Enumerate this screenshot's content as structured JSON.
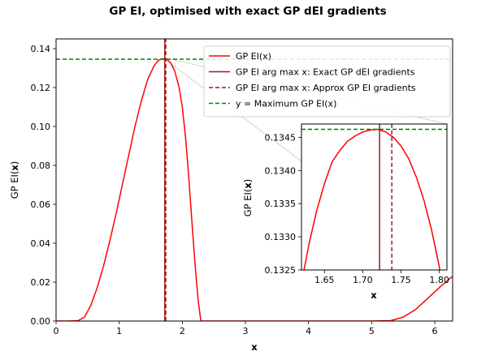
{
  "chart_data": [
    {
      "type": "line",
      "title": "GP EI, optimised with exact GP dEI gradients",
      "xlabel": "x",
      "ylabel": "GP EI(x)",
      "xlim": [
        0,
        6.283
      ],
      "ylim": [
        0,
        0.145
      ],
      "xticks": [
        0,
        1,
        2,
        3,
        4,
        5,
        6
      ],
      "yticks": [
        0.0,
        0.02,
        0.04,
        0.06,
        0.08,
        0.1,
        0.12,
        0.14
      ],
      "xtick_labels": [
        "0",
        "1",
        "2",
        "3",
        "4",
        "5",
        "6"
      ],
      "ytick_labels": [
        "0.00",
        "0.02",
        "0.04",
        "0.06",
        "0.08",
        "0.10",
        "0.12",
        "0.14"
      ],
      "grid": false,
      "legend_position": "top-right",
      "series": [
        {
          "name": "GP EI(x)",
          "style": "solid",
          "color": "#ff0000",
          "x": [
            0,
            0.2,
            0.35,
            0.45,
            0.55,
            0.65,
            0.75,
            0.85,
            0.95,
            1.05,
            1.15,
            1.25,
            1.35,
            1.45,
            1.55,
            1.62,
            1.68,
            1.72,
            1.76,
            1.82,
            1.88,
            1.95,
            2.0,
            2.05,
            2.1,
            2.15,
            2.2,
            2.25,
            2.29,
            2.3,
            3.0,
            4.0,
            5.0,
            5.3,
            5.5,
            5.7,
            5.9,
            6.1,
            6.283
          ],
          "y": [
            0,
            0,
            0.0002,
            0.002,
            0.008,
            0.017,
            0.028,
            0.041,
            0.055,
            0.07,
            0.085,
            0.1,
            0.113,
            0.124,
            0.131,
            0.134,
            0.1348,
            0.1346,
            0.1343,
            0.1325,
            0.1285,
            0.12,
            0.11,
            0.095,
            0.075,
            0.052,
            0.03,
            0.011,
            0.001,
            0,
            0,
            0,
            0,
            0.0002,
            0.002,
            0.006,
            0.012,
            0.018,
            0.023
          ]
        },
        {
          "name": "GP EI arg max x: Exact GP dEI gradients",
          "style": "solid",
          "color": "#a01818",
          "x": [
            1.722,
            1.722
          ],
          "y": [
            0,
            0.145
          ]
        },
        {
          "name": "GP EI arg max x: Approx GP EI gradients",
          "style": "dashed",
          "color": "#a01818",
          "x": [
            1.738,
            1.738
          ],
          "y": [
            0,
            0.145
          ]
        },
        {
          "name": "y = Maximum GP EI(x)",
          "style": "dashed",
          "color": "#008000",
          "x": [
            0,
            6.283
          ],
          "y": [
            0.1346,
            0.1346
          ]
        }
      ]
    },
    {
      "type": "line",
      "title": "",
      "xlabel": "x",
      "ylabel": "GP EI(x)",
      "xlim": [
        1.62,
        1.81
      ],
      "ylim": [
        0.1325,
        0.1347
      ],
      "xticks": [
        1.65,
        1.7,
        1.75,
        1.8
      ],
      "yticks": [
        0.1325,
        0.133,
        0.1335,
        0.134,
        0.1345
      ],
      "xtick_labels": [
        "1.65",
        "1.70",
        "1.75",
        "1.80"
      ],
      "ytick_labels": [
        "0.1325",
        "0.1330",
        "0.1335",
        "0.1340",
        "0.1345"
      ],
      "grid": false,
      "series": [
        {
          "name": "GP EI(x)",
          "style": "solid",
          "color": "#ff0000",
          "x": [
            1.62,
            1.63,
            1.64,
            1.65,
            1.66,
            1.67,
            1.68,
            1.69,
            1.7,
            1.71,
            1.72,
            1.73,
            1.74,
            1.75,
            1.76,
            1.77,
            1.78,
            1.79,
            1.8,
            1.81
          ],
          "y": [
            0.1323,
            0.1329,
            0.1334,
            0.1338,
            0.13413,
            0.1343,
            0.13444,
            0.13452,
            0.13458,
            0.13461,
            0.13462,
            0.13458,
            0.1345,
            0.13437,
            0.13418,
            0.1339,
            0.13355,
            0.1331,
            0.13255,
            0.1319
          ]
        },
        {
          "name": "GP EI arg max x: Exact GP dEI gradients",
          "style": "solid",
          "color": "#a01818",
          "x": [
            1.722,
            1.722
          ],
          "y": [
            0.132,
            0.1347
          ]
        },
        {
          "name": "GP EI arg max x: Approx GP EI gradients",
          "style": "dashed",
          "color": "#a01818",
          "x": [
            1.738,
            1.738
          ],
          "y": [
            0.132,
            0.1347
          ]
        },
        {
          "name": "y = Maximum GP EI(x)",
          "style": "dashed",
          "color": "#008000",
          "x": [
            1.62,
            1.81
          ],
          "y": [
            0.13462,
            0.13462
          ]
        }
      ]
    }
  ],
  "legend": {
    "items": [
      {
        "label": "GP EI(x)",
        "style": "solid",
        "color": "#ff0000"
      },
      {
        "label": "GP EI arg max x: Exact GP dEI gradients",
        "style": "solid",
        "color": "#a01818"
      },
      {
        "label": "GP EI arg max x: Approx GP EI gradients",
        "style": "dashed",
        "color": "#a01818"
      },
      {
        "label": "y = Maximum GP EI(x)",
        "style": "dashed",
        "color": "#008000"
      }
    ]
  }
}
